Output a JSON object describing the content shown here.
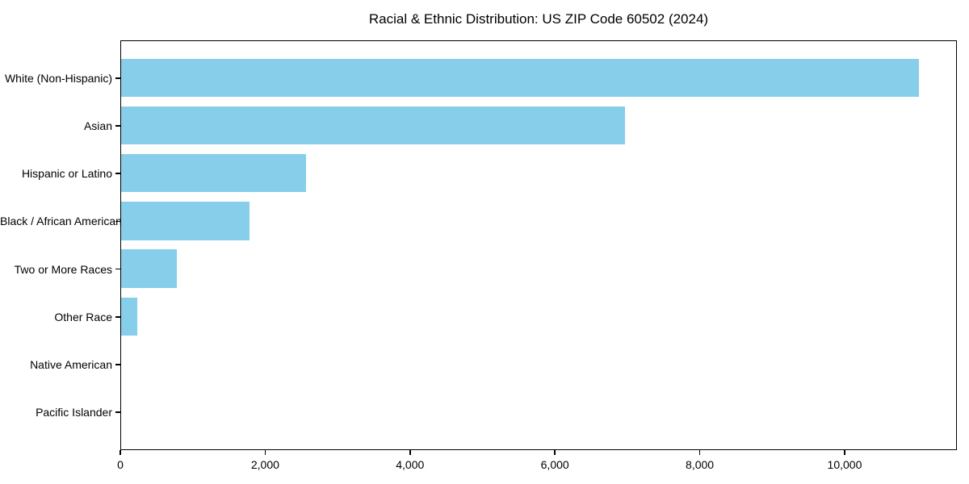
{
  "figure": {
    "background": "#ffffff",
    "text_color": "#000000",
    "spine_color": "#000000"
  },
  "chart_data": {
    "type": "bar",
    "orientation": "horizontal",
    "title": "Racial & Ethnic Distribution: US ZIP Code 60502 (2024)",
    "categories": [
      "White (Non-Hispanic)",
      "Asian",
      "Hispanic or Latino",
      "Black / African American",
      "Two or More Races",
      "Other Race",
      "Native American",
      "Pacific Islander"
    ],
    "values": [
      11015,
      6955,
      2555,
      1770,
      765,
      220,
      0,
      0
    ],
    "bar_color": "#87CEEB",
    "xlabel": "",
    "ylabel": "",
    "xlim": [
      0,
      11550
    ],
    "x_ticks": [
      0,
      2000,
      4000,
      6000,
      8000,
      10000
    ],
    "x_tick_labels": [
      "0",
      "2,000",
      "4,000",
      "6,000",
      "8,000",
      "10,000"
    ],
    "grid": false,
    "legend": "none"
  }
}
